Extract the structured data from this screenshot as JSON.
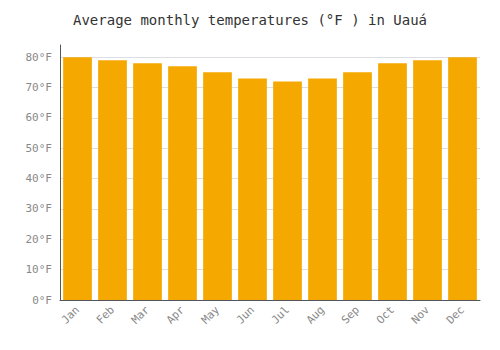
{
  "chart_data": {
    "type": "bar",
    "title": "Average monthly temperatures (°F ) in Uauá",
    "categories": [
      "Jan",
      "Feb",
      "Mar",
      "Apr",
      "May",
      "Jun",
      "Jul",
      "Aug",
      "Sep",
      "Oct",
      "Nov",
      "Dec"
    ],
    "values": [
      80,
      79,
      78,
      77,
      75,
      73,
      72,
      73,
      75,
      78,
      79,
      80
    ],
    "color": "#F5A800",
    "ylim": [
      0,
      84
    ],
    "yticks": [
      {
        "value": 0,
        "label": "0°F"
      },
      {
        "value": 10,
        "label": "10°F"
      },
      {
        "value": 20,
        "label": "20°F"
      },
      {
        "value": 30,
        "label": "30°F"
      },
      {
        "value": 40,
        "label": "40°F"
      },
      {
        "value": 50,
        "label": "50°F"
      },
      {
        "value": 60,
        "label": "60°F"
      },
      {
        "value": 70,
        "label": "70°F"
      },
      {
        "value": 80,
        "label": "80°F"
      }
    ],
    "grid": true
  }
}
